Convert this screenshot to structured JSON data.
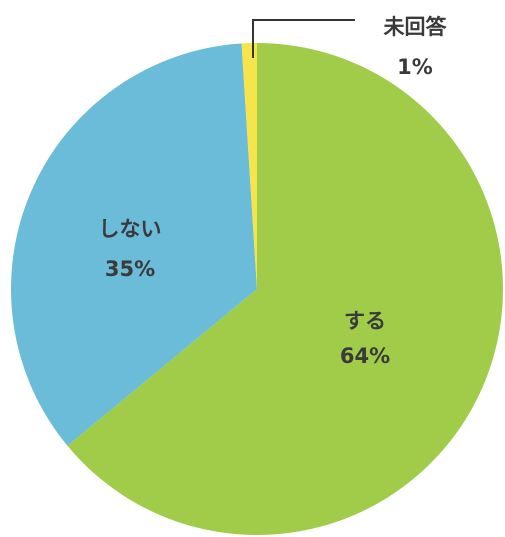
{
  "chart_data": {
    "type": "pie",
    "categories": [
      "する",
      "しない",
      "未回答"
    ],
    "values": [
      64,
      35,
      1
    ],
    "value_labels": [
      "64%",
      "35%",
      "1%"
    ],
    "colors": [
      "#a0cc4a",
      "#6bbcd8",
      "#f5e44a"
    ]
  }
}
